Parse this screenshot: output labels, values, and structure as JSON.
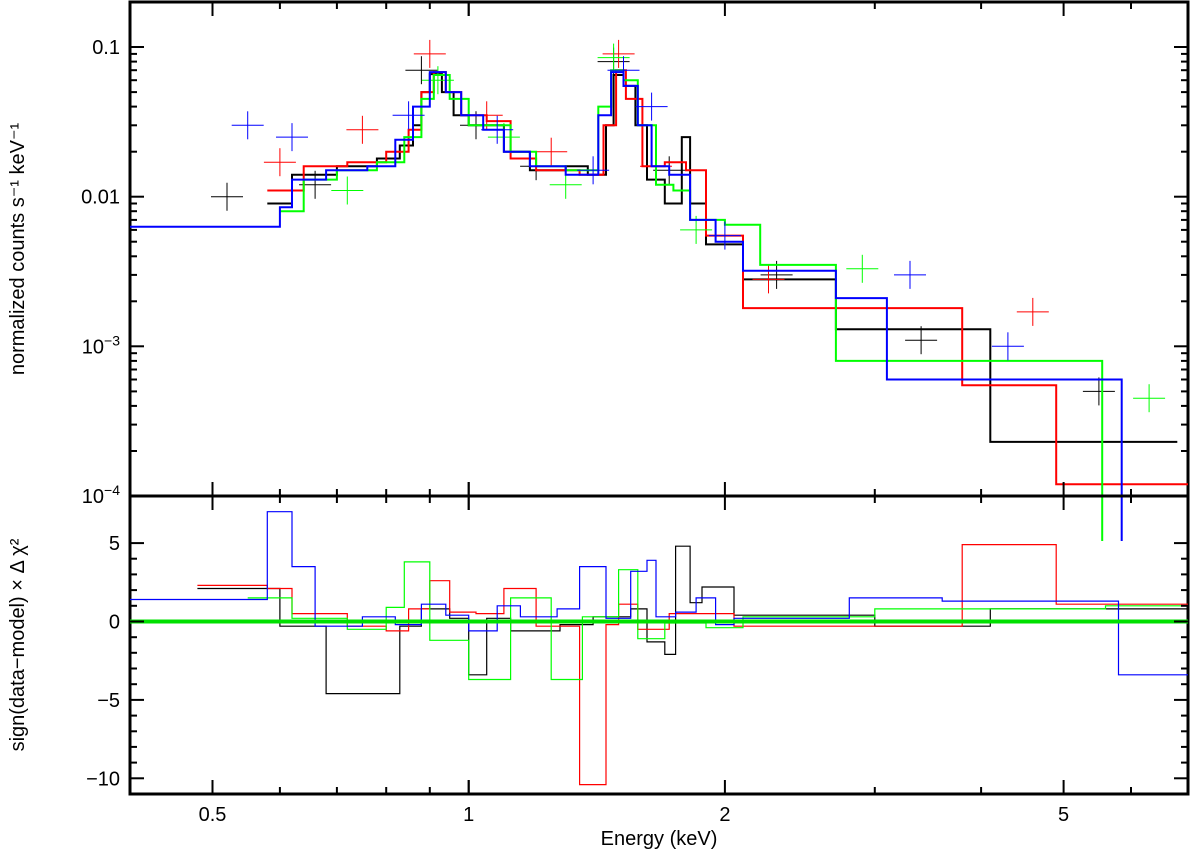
{
  "chart_data": [
    {
      "panel": "spectrum",
      "type": "line",
      "xscale": "log",
      "yscale": "log",
      "xlim": [
        0.4,
        7.0
      ],
      "ylim": [
        0.0001,
        0.2
      ],
      "ylabel": "normalized counts s⁻¹ keV⁻¹",
      "yticks": [
        {
          "value": 0.1,
          "label": "0.1"
        },
        {
          "value": 0.01,
          "label": "0.01"
        },
        {
          "value": 0.001,
          "base": "10",
          "exp": "−3"
        },
        {
          "value": 0.0001,
          "base": "10",
          "exp": "−4"
        }
      ],
      "series": [
        {
          "color": "#000000",
          "model": [
            [
              0.58,
              0.009
            ],
            [
              0.62,
              0.014
            ],
            [
              0.7,
              0.016
            ],
            [
              0.78,
              0.018
            ],
            [
              0.83,
              0.022
            ],
            [
              0.86,
              0.03
            ],
            [
              0.88,
              0.05
            ],
            [
              0.9,
              0.066
            ],
            [
              0.93,
              0.05
            ],
            [
              0.96,
              0.035
            ],
            [
              1.0,
              0.03
            ],
            [
              1.05,
              0.03
            ],
            [
              1.1,
              0.02
            ],
            [
              1.18,
              0.015
            ],
            [
              1.3,
              0.016
            ],
            [
              1.38,
              0.014
            ],
            [
              1.45,
              0.03
            ],
            [
              1.48,
              0.065
            ],
            [
              1.52,
              0.055
            ],
            [
              1.57,
              0.03
            ],
            [
              1.62,
              0.013
            ],
            [
              1.7,
              0.009
            ],
            [
              1.78,
              0.025
            ],
            [
              1.82,
              0.009
            ],
            [
              1.9,
              0.0048
            ],
            [
              2.1,
              0.0028
            ],
            [
              2.7,
              0.0013
            ],
            [
              4.1,
              0.00023
            ],
            [
              6.8,
              0.00023
            ]
          ],
          "data": [
            [
              0.52,
              0.01
            ],
            [
              0.66,
              0.012
            ],
            [
              0.88,
              0.07
            ],
            [
              1.02,
              0.03
            ],
            [
              1.2,
              0.016
            ],
            [
              1.48,
              0.08
            ],
            [
              1.72,
              0.015
            ],
            [
              2.3,
              0.003
            ],
            [
              3.4,
              0.0011
            ],
            [
              5.5,
              0.0005
            ]
          ]
        },
        {
          "color": "#ff0000",
          "model": [
            [
              0.58,
              0.011
            ],
            [
              0.64,
              0.016
            ],
            [
              0.72,
              0.017
            ],
            [
              0.8,
              0.02
            ],
            [
              0.85,
              0.028
            ],
            [
              0.88,
              0.05
            ],
            [
              0.91,
              0.068
            ],
            [
              0.94,
              0.05
            ],
            [
              0.98,
              0.035
            ],
            [
              1.05,
              0.032
            ],
            [
              1.12,
              0.018
            ],
            [
              1.2,
              0.015
            ],
            [
              1.35,
              0.014
            ],
            [
              1.44,
              0.03
            ],
            [
              1.49,
              0.07
            ],
            [
              1.53,
              0.045
            ],
            [
              1.6,
              0.016
            ],
            [
              1.7,
              0.017
            ],
            [
              1.8,
              0.015
            ],
            [
              1.9,
              0.0055
            ],
            [
              2.1,
              0.0018
            ],
            [
              3.8,
              0.00055
            ],
            [
              4.9,
              0.00012
            ],
            [
              7.0,
              0.00012
            ]
          ],
          "data": [
            [
              0.6,
              0.017
            ],
            [
              0.75,
              0.028
            ],
            [
              0.9,
              0.09
            ],
            [
              1.05,
              0.035
            ],
            [
              1.25,
              0.02
            ],
            [
              1.5,
              0.09
            ],
            [
              1.66,
              0.016
            ],
            [
              2.25,
              0.0028
            ],
            [
              4.6,
              0.0017
            ]
          ]
        },
        {
          "color": "#00ff00",
          "model": [
            [
              0.6,
              0.008
            ],
            [
              0.64,
              0.013
            ],
            [
              0.7,
              0.015
            ],
            [
              0.78,
              0.017
            ],
            [
              0.84,
              0.025
            ],
            [
              0.88,
              0.045
            ],
            [
              0.91,
              0.065
            ],
            [
              0.95,
              0.045
            ],
            [
              1.0,
              0.03
            ],
            [
              1.06,
              0.03
            ],
            [
              1.12,
              0.02
            ],
            [
              1.2,
              0.016
            ],
            [
              1.3,
              0.015
            ],
            [
              1.42,
              0.04
            ],
            [
              1.47,
              0.07
            ],
            [
              1.52,
              0.06
            ],
            [
              1.58,
              0.03
            ],
            [
              1.66,
              0.012
            ],
            [
              1.74,
              0.011
            ],
            [
              1.82,
              0.007
            ],
            [
              2.0,
              0.0065
            ],
            [
              2.2,
              0.0035
            ],
            [
              2.7,
              0.0008
            ],
            [
              5.5,
              0.0008
            ],
            [
              5.55,
              5e-05
            ]
          ],
          "data": [
            [
              0.72,
              0.011
            ],
            [
              0.92,
              0.06
            ],
            [
              1.1,
              0.025
            ],
            [
              1.3,
              0.012
            ],
            [
              1.48,
              0.085
            ],
            [
              1.85,
              0.006
            ],
            [
              2.9,
              0.0033
            ],
            [
              6.3,
              0.00045
            ]
          ]
        },
        {
          "color": "#0000ff",
          "model": [
            [
              0.4,
              0.0063
            ],
            [
              0.6,
              0.0085
            ],
            [
              0.62,
              0.013
            ],
            [
              0.68,
              0.015
            ],
            [
              0.76,
              0.016
            ],
            [
              0.82,
              0.024
            ],
            [
              0.86,
              0.04
            ],
            [
              0.9,
              0.068
            ],
            [
              0.94,
              0.05
            ],
            [
              0.98,
              0.035
            ],
            [
              1.04,
              0.028
            ],
            [
              1.1,
              0.02
            ],
            [
              1.18,
              0.016
            ],
            [
              1.3,
              0.014
            ],
            [
              1.42,
              0.035
            ],
            [
              1.47,
              0.068
            ],
            [
              1.52,
              0.055
            ],
            [
              1.58,
              0.03
            ],
            [
              1.64,
              0.016
            ],
            [
              1.72,
              0.014
            ],
            [
              1.82,
              0.007
            ],
            [
              1.95,
              0.005
            ],
            [
              2.1,
              0.0032
            ],
            [
              2.7,
              0.0021
            ],
            [
              3.1,
              0.0006
            ],
            [
              5.8,
              0.0006
            ],
            [
              5.85,
              5e-05
            ]
          ],
          "data": [
            [
              0.55,
              0.03
            ],
            [
              0.62,
              0.025
            ],
            [
              0.85,
              0.035
            ],
            [
              1.08,
              0.028
            ],
            [
              1.4,
              0.015
            ],
            [
              1.52,
              0.07
            ],
            [
              1.64,
              0.04
            ],
            [
              2.0,
              0.0055
            ],
            [
              3.3,
              0.003
            ],
            [
              4.3,
              0.001
            ]
          ]
        }
      ]
    },
    {
      "panel": "residuals",
      "type": "line",
      "xscale": "log",
      "xlim": [
        0.4,
        7.0
      ],
      "ylim": [
        -11,
        8
      ],
      "ylabel": "sign(data−model) × Δ χ²",
      "xlabel": "Energy (keV)",
      "yticks": [
        5,
        0,
        -5,
        -10
      ],
      "xticks": [
        {
          "value": 0.5,
          "label": "0.5"
        },
        {
          "value": 1,
          "label": "1"
        },
        {
          "value": 2,
          "label": "2"
        },
        {
          "value": 5,
          "label": "5"
        }
      ],
      "zero_line_color": "#00e000",
      "series": [
        {
          "color": "#000000",
          "steps": [
            [
              0.48,
              2.1
            ],
            [
              0.6,
              -0.3
            ],
            [
              0.68,
              -4.6
            ],
            [
              0.83,
              -0.3
            ],
            [
              0.88,
              0.8
            ],
            [
              0.95,
              0.2
            ],
            [
              1.0,
              -3.4
            ],
            [
              1.05,
              0.2
            ],
            [
              1.12,
              -0.6
            ],
            [
              1.28,
              -0.2
            ],
            [
              1.4,
              0.3
            ],
            [
              1.55,
              0.8
            ],
            [
              1.62,
              -1.3
            ],
            [
              1.7,
              -2.1
            ],
            [
              1.75,
              4.8
            ],
            [
              1.82,
              1.2
            ],
            [
              1.88,
              2.2
            ],
            [
              2.05,
              0.4
            ],
            [
              3.0,
              -0.3
            ],
            [
              4.1,
              0.8
            ],
            [
              7.0,
              0.8
            ]
          ]
        },
        {
          "color": "#ff0000",
          "steps": [
            [
              0.48,
              2.3
            ],
            [
              0.58,
              2.1
            ],
            [
              0.62,
              0.5
            ],
            [
              0.72,
              -0.3
            ],
            [
              0.8,
              -0.6
            ],
            [
              0.85,
              0.8
            ],
            [
              0.9,
              2.6
            ],
            [
              0.95,
              0.6
            ],
            [
              1.02,
              0.5
            ],
            [
              1.1,
              2.1
            ],
            [
              1.2,
              -0.3
            ],
            [
              1.35,
              -10.4
            ],
            [
              1.45,
              -0.2
            ],
            [
              1.5,
              1.1
            ],
            [
              1.58,
              -0.5
            ],
            [
              1.72,
              0.5
            ],
            [
              2.05,
              -0.3
            ],
            [
              3.8,
              4.9
            ],
            [
              4.9,
              1.1
            ],
            [
              7.0,
              1.1
            ]
          ]
        },
        {
          "color": "#00ff00",
          "steps": [
            [
              0.55,
              1.5
            ],
            [
              0.62,
              0.2
            ],
            [
              0.72,
              -0.5
            ],
            [
              0.8,
              0.9
            ],
            [
              0.84,
              3.8
            ],
            [
              0.9,
              -1.2
            ],
            [
              1.0,
              -3.7
            ],
            [
              1.12,
              1.5
            ],
            [
              1.25,
              -3.7
            ],
            [
              1.36,
              0.3
            ],
            [
              1.5,
              3.3
            ],
            [
              1.58,
              -1.1
            ],
            [
              1.7,
              -0.1
            ],
            [
              1.9,
              -0.4
            ],
            [
              2.1,
              0.3
            ],
            [
              3.0,
              0.8
            ],
            [
              5.6,
              1.0
            ],
            [
              7.0,
              1.0
            ]
          ]
        },
        {
          "color": "#0000ff",
          "steps": [
            [
              0.4,
              1.4
            ],
            [
              0.58,
              7.0
            ],
            [
              0.62,
              3.5
            ],
            [
              0.66,
              -0.3
            ],
            [
              0.75,
              0.3
            ],
            [
              0.82,
              -0.2
            ],
            [
              0.88,
              1.1
            ],
            [
              0.94,
              0.4
            ],
            [
              1.0,
              -0.6
            ],
            [
              1.08,
              1.0
            ],
            [
              1.15,
              0.3
            ],
            [
              1.27,
              0.8
            ],
            [
              1.35,
              3.5
            ],
            [
              1.45,
              0.2
            ],
            [
              1.55,
              3.2
            ],
            [
              1.62,
              3.9
            ],
            [
              1.66,
              0.3
            ],
            [
              1.75,
              0.6
            ],
            [
              1.85,
              1.5
            ],
            [
              1.95,
              -0.2
            ],
            [
              2.05,
              0.2
            ],
            [
              2.8,
              1.5
            ],
            [
              3.6,
              1.3
            ],
            [
              5.8,
              -3.4
            ],
            [
              7.0,
              -3.4
            ]
          ]
        }
      ]
    }
  ]
}
